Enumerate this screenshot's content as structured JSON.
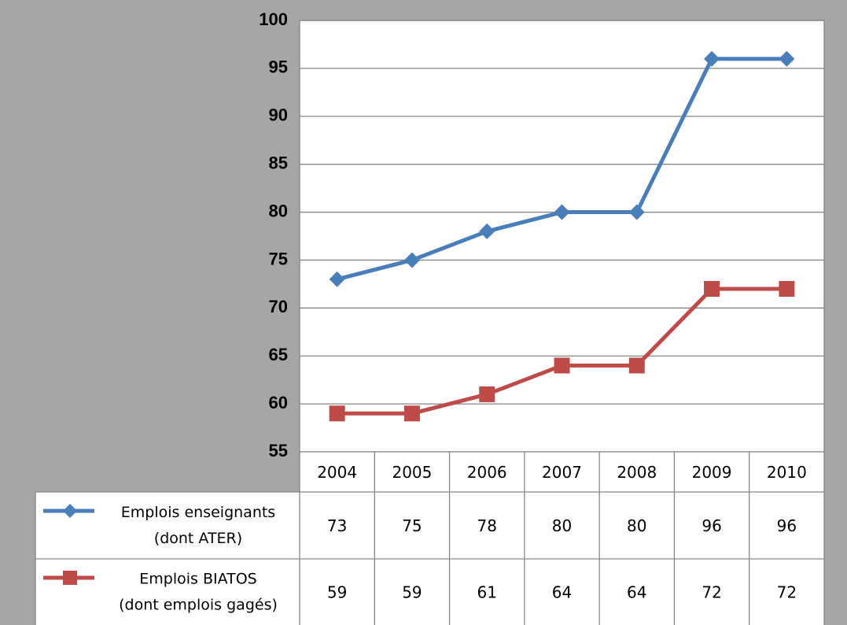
{
  "chart_data": {
    "type": "line",
    "title": "",
    "xlabel": "",
    "ylabel": "",
    "categories": [
      "2004",
      "2005",
      "2006",
      "2007",
      "2008",
      "2009",
      "2010"
    ],
    "ylim": [
      55,
      100
    ],
    "yticks": [
      55,
      60,
      65,
      70,
      75,
      80,
      85,
      90,
      95,
      100
    ],
    "grid": true,
    "legend": "data-table",
    "series": [
      {
        "name": "Emplois enseignants (dont ATER)",
        "name_lines": [
          "Emplois enseignants",
          "(dont ATER)"
        ],
        "marker": "diamond",
        "color": "#4a7ebb",
        "values": [
          73,
          75,
          78,
          80,
          80,
          96,
          96
        ]
      },
      {
        "name": "Emplois BIATOS (dont emplois gagés)",
        "name_lines": [
          "Emplois BIATOS",
          "(dont emplois gagés)"
        ],
        "marker": "square",
        "color": "#be4b48",
        "values": [
          59,
          59,
          61,
          64,
          64,
          72,
          72
        ]
      }
    ]
  },
  "colors": {
    "background": "#a6a6a6",
    "plot_area": "#ffffff",
    "gridline": "#868686",
    "table_border": "#868686"
  }
}
